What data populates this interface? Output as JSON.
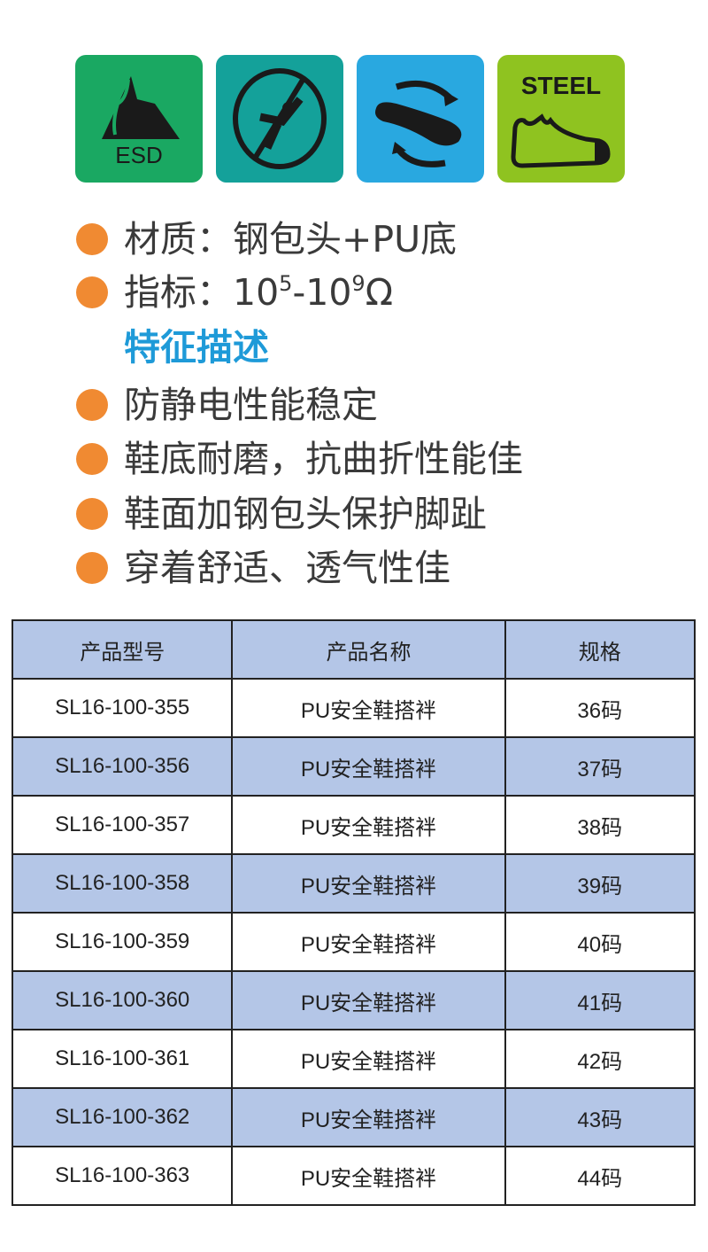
{
  "icons": [
    {
      "name": "esd-icon",
      "label": "ESD",
      "color": "#1aa862"
    },
    {
      "name": "anti-slip-icon",
      "color": "#14a19a"
    },
    {
      "name": "flexible-sole-icon",
      "color": "#29a8e0"
    },
    {
      "name": "steel-toe-icon",
      "label": "STEEL",
      "color": "#8fc320"
    }
  ],
  "bullet_color": "#f08a32",
  "specs": {
    "material": "材质：钢包头+PU底",
    "index_prefix": "指标：10",
    "index_exp1": "5",
    "index_mid": "-10",
    "index_exp2": "9",
    "index_unit": "Ω"
  },
  "features_heading": "特征描述",
  "features": [
    "防静电性能稳定",
    "鞋底耐磨，抗曲折性能佳",
    "鞋面加钢包头保护脚趾",
    "穿着舒适、透气性佳"
  ],
  "table": {
    "header_color": "#b4c6e7",
    "headers": [
      "产品型号",
      "产品名称",
      "规格"
    ],
    "rows": [
      [
        "SL16-100-355",
        "PU安全鞋搭袢",
        "36码"
      ],
      [
        "SL16-100-356",
        "PU安全鞋搭袢",
        "37码"
      ],
      [
        "SL16-100-357",
        "PU安全鞋搭袢",
        "38码"
      ],
      [
        "SL16-100-358",
        "PU安全鞋搭袢",
        "39码"
      ],
      [
        "SL16-100-359",
        "PU安全鞋搭袢",
        "40码"
      ],
      [
        "SL16-100-360",
        "PU安全鞋搭袢",
        "41码"
      ],
      [
        "SL16-100-361",
        "PU安全鞋搭袢",
        "42码"
      ],
      [
        "SL16-100-362",
        "PU安全鞋搭袢",
        "43码"
      ],
      [
        "SL16-100-363",
        "PU安全鞋搭袢",
        "44码"
      ]
    ]
  }
}
